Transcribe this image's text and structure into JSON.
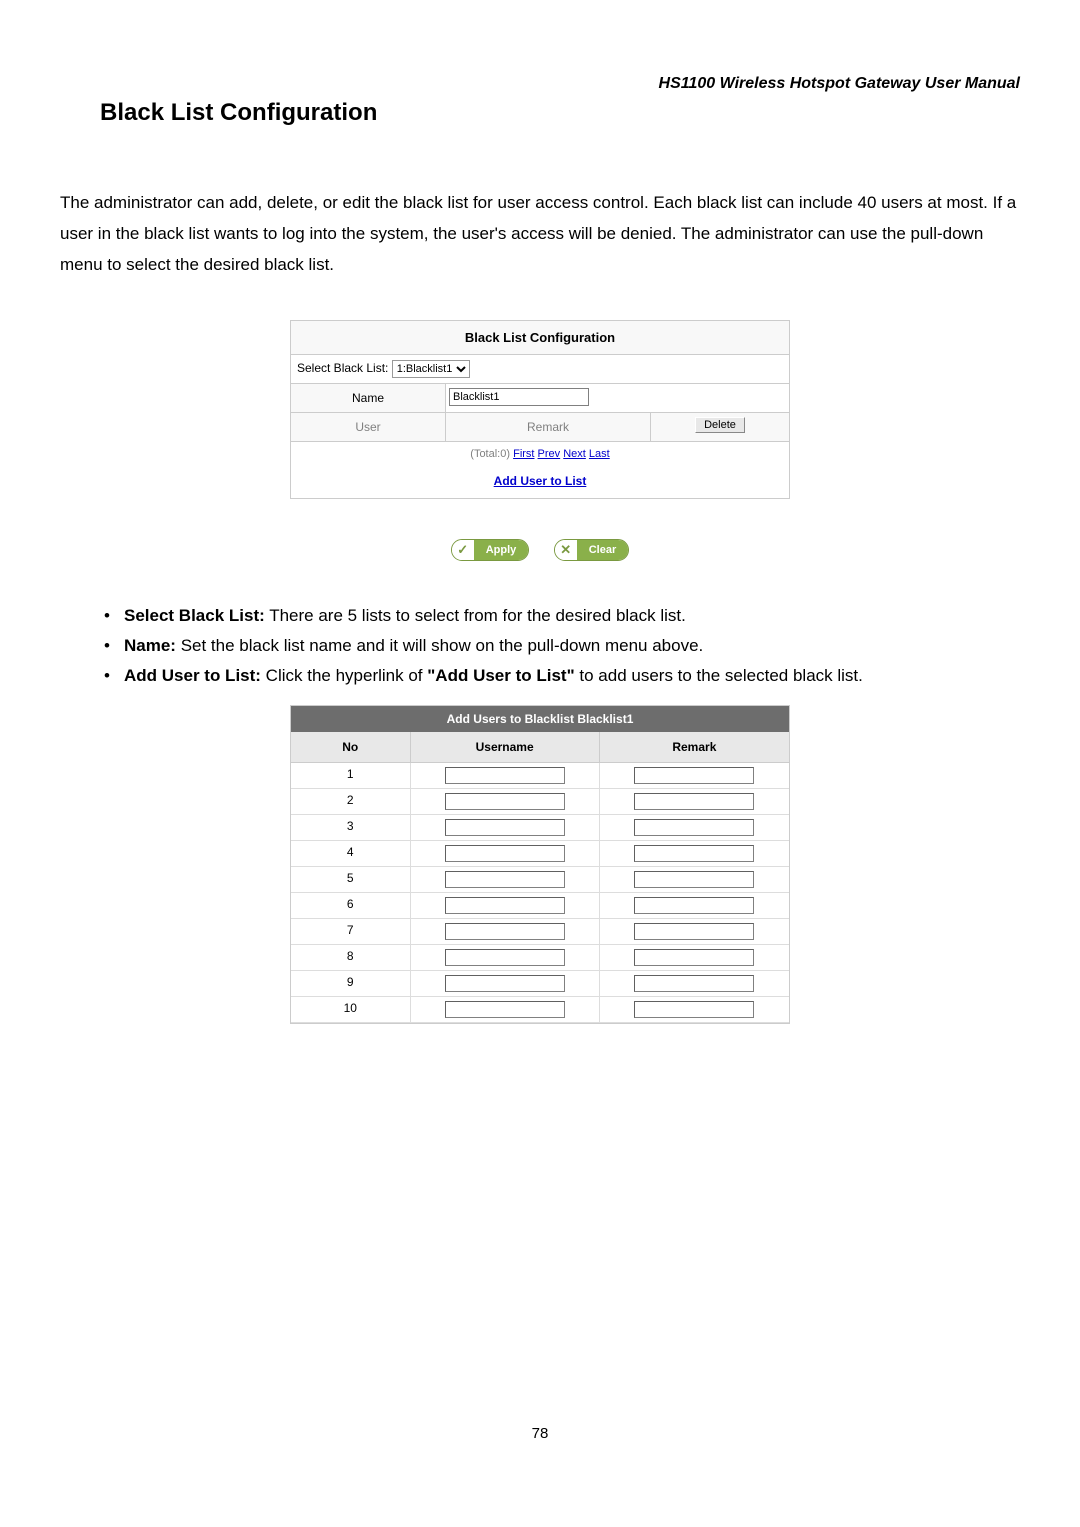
{
  "doc_header": "HS1100 Wireless Hotspot Gateway User Manual",
  "section_title": "Black List Configuration",
  "paragraph": "The administrator can add, delete, or edit the black list for user access control. Each black list can include 40 users at most. If a user in the black list wants to log into the system, the user's access will be denied. The administrator can use the pull-down menu to select the desired black list.",
  "panel1": {
    "title": "Black List Configuration",
    "select_label": "Select Black List:",
    "select_value": "1:Blacklist1",
    "name_label": "Name",
    "name_value": "Blacklist1",
    "headers": {
      "user": "User",
      "remark": "Remark",
      "delete": "Delete"
    },
    "pager_total": "(Total:0)",
    "pager_links": [
      "First",
      "Prev",
      "Next",
      "Last"
    ],
    "add_user_link": "Add User to List"
  },
  "buttons": {
    "apply": "Apply",
    "clear": "Clear"
  },
  "bullets": [
    {
      "label": "Select Black List:",
      "text": " There are 5 lists to select from for the desired black list."
    },
    {
      "label": "Name:",
      "text": " Set the black list name and it will show on the pull-down menu above."
    },
    {
      "label": "Add User to List:",
      "text_pre": " Click the hyperlink of ",
      "bold": "\"Add User to List\"",
      "text_post": " to add users to the selected black list."
    }
  ],
  "panel2": {
    "title": "Add Users to Blacklist Blacklist1",
    "headers": {
      "no": "No",
      "username": "Username",
      "remark": "Remark"
    },
    "rows": [
      "1",
      "2",
      "3",
      "4",
      "5",
      "6",
      "7",
      "8",
      "9",
      "10"
    ]
  },
  "page_number": "78",
  "colors": {
    "panel_border": "#cccccc",
    "panel2_title_bg": "#6d6d6d",
    "panel2_headers_bg": "#e8e8e8",
    "pill_green": "#8ab04a",
    "link": "#0000cc"
  }
}
